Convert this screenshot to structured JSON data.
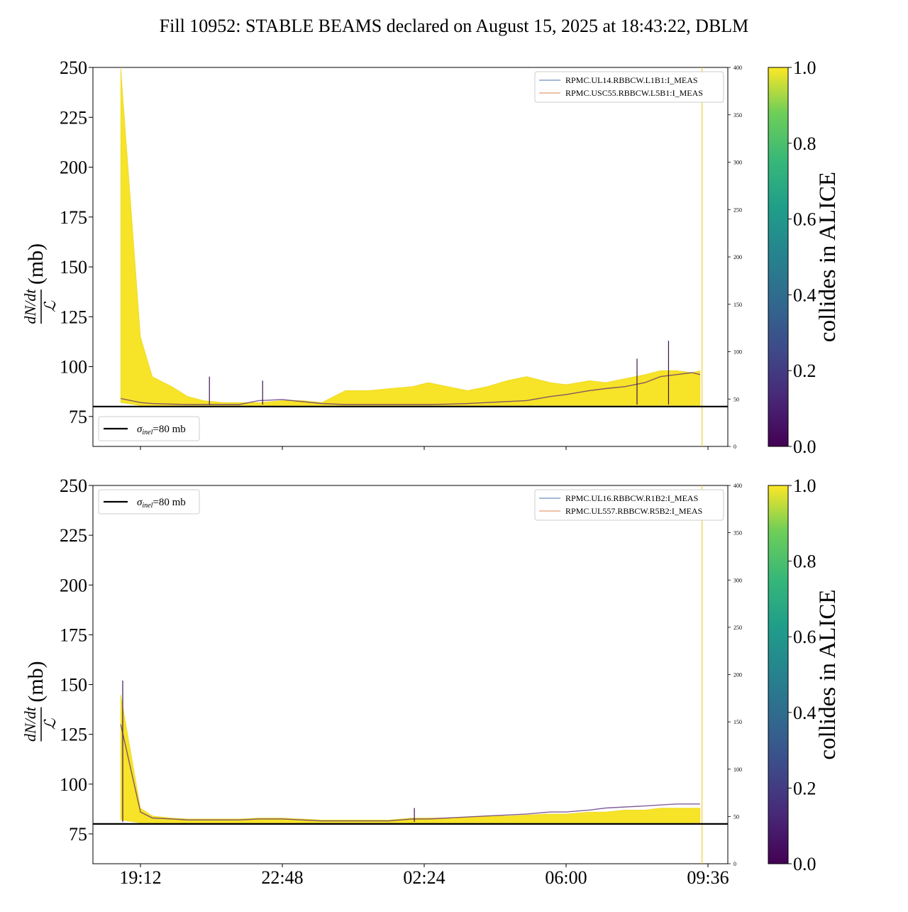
{
  "figure": {
    "title": "Fill 10952: STABLE BEAMS declared on August 15, 2025 at 18:43:22, DBLM"
  },
  "chart_data": [
    {
      "type": "line",
      "ylabel_frac_num": "dN/dt",
      "ylabel_frac_den": "ℒ",
      "ylabel_unit": "(mb)",
      "ylim": [
        60,
        250
      ],
      "yticks": [
        "75",
        "100",
        "125",
        "150",
        "175",
        "200",
        "225",
        "250"
      ],
      "y2lim": [
        0,
        400
      ],
      "y2ticks": [
        "0",
        "50",
        "100",
        "150",
        "200",
        "250",
        "300",
        "350",
        "400"
      ],
      "xticks": [],
      "x_hours": [
        18.7,
        19.2,
        19.5,
        20.0,
        20.4,
        20.8,
        21.3,
        21.7,
        22.2,
        22.8,
        23.3,
        23.8,
        0.4,
        1.0,
        1.5,
        2.1,
        2.5,
        3.0,
        3.5,
        4.0,
        4.5,
        5.0,
        5.6,
        6.0,
        6.6,
        7.0,
        7.5,
        8.0,
        8.4,
        8.8,
        9.2,
        9.4
      ],
      "series": [
        {
          "name": "yellow-envelope-upper",
          "values": [
            250,
            115,
            95,
            90,
            85,
            83,
            82,
            82,
            82,
            83,
            83,
            82,
            88,
            88,
            89,
            90,
            92,
            90,
            88,
            90,
            93,
            95,
            92,
            91,
            93,
            92,
            94,
            96,
            98,
            98,
            97,
            98
          ]
        },
        {
          "name": "yellow-envelope-lower",
          "values": [
            82,
            80.5,
            80.5,
            80.5,
            80.5,
            80.5,
            80.5,
            80.5,
            80.5,
            80.5,
            80.5,
            80.5,
            80.5,
            80.5,
            80.5,
            80.5,
            80.5,
            80.5,
            80.5,
            80.5,
            80.5,
            80.5,
            80.5,
            80.5,
            80.5,
            80.5,
            80.5,
            80.5,
            80.5,
            80.5,
            80.5,
            80.5
          ]
        },
        {
          "name": "purple-trace",
          "values": [
            84,
            82,
            81.5,
            81.2,
            81,
            81,
            81,
            81,
            83,
            83.5,
            82.5,
            81.5,
            81,
            81,
            81,
            81,
            81,
            81.2,
            81.5,
            82,
            82.5,
            83,
            85,
            86,
            88,
            89,
            90,
            92,
            95,
            96,
            97,
            96
          ]
        }
      ],
      "spikes": [
        {
          "x_hour": 20.95,
          "value": 95
        },
        {
          "x_hour": 22.3,
          "value": 93
        },
        {
          "x_hour": 8.6,
          "value": 113
        },
        {
          "x_hour": 7.8,
          "value": 104
        }
      ],
      "reference_line": {
        "value": 80,
        "label_sym": "σ",
        "label_sub": "inel",
        "label_rest": "=80 mb"
      },
      "vertical_marker_hour": 9.45,
      "legend": {
        "position": "top-right",
        "entries": [
          {
            "label": "RPMC.UL14.RBBCW.L1B1:I_MEAS",
            "color": "#4c72b0"
          },
          {
            "label": "RPMC.USC55.RBBCW.L5B1:I_MEAS",
            "color": "#dd8452"
          }
        ]
      },
      "ref_legend_position": "bottom-left",
      "colorbar": {
        "label": "collides in ALICE",
        "ticks": [
          "0.0",
          "0.2",
          "0.4",
          "0.6",
          "0.8",
          "1.0"
        ]
      }
    },
    {
      "type": "line",
      "ylabel_frac_num": "dN/dt",
      "ylabel_frac_den": "ℒ",
      "ylabel_unit": "(mb)",
      "ylim": [
        60,
        250
      ],
      "yticks": [
        "75",
        "100",
        "125",
        "150",
        "175",
        "200",
        "225",
        "250"
      ],
      "y2lim": [
        0,
        400
      ],
      "y2ticks": [
        "0",
        "50",
        "100",
        "150",
        "200",
        "250",
        "300",
        "350",
        "400"
      ],
      "xticks": [
        "19:12",
        "22:48",
        "02:24",
        "06:00",
        "09:36"
      ],
      "x_hours": [
        18.7,
        19.2,
        19.5,
        20.0,
        20.4,
        20.8,
        21.3,
        21.7,
        22.2,
        22.8,
        23.3,
        23.8,
        0.4,
        1.0,
        1.5,
        2.1,
        2.5,
        3.0,
        3.5,
        4.0,
        4.5,
        5.0,
        5.6,
        6.0,
        6.6,
        7.0,
        7.5,
        8.0,
        8.4,
        8.8,
        9.2,
        9.4
      ],
      "series": [
        {
          "name": "yellow-envelope-upper",
          "values": [
            145,
            88,
            84,
            83,
            82.5,
            82.5,
            82.5,
            82.5,
            83,
            83,
            82.5,
            82,
            82,
            82,
            82,
            83,
            83,
            83,
            83.5,
            84,
            84,
            84.5,
            85,
            85,
            86,
            86,
            87,
            87,
            88,
            88,
            88,
            88
          ]
        },
        {
          "name": "yellow-envelope-lower",
          "values": [
            82,
            80.5,
            80.5,
            80.5,
            80.5,
            80.5,
            80.5,
            80.5,
            80.5,
            80.5,
            80.5,
            80.5,
            80.5,
            80.5,
            80.5,
            80.5,
            80.5,
            80.5,
            80.5,
            80.5,
            80.5,
            80.5,
            80.5,
            80.5,
            80.5,
            80.5,
            80.5,
            80.5,
            80.5,
            80.5,
            80.5,
            80.5
          ]
        },
        {
          "name": "purple-trace",
          "values": [
            130,
            86,
            83,
            82.5,
            82,
            82,
            82,
            82,
            82.5,
            82.5,
            82,
            81.5,
            81.5,
            81.5,
            81.5,
            82.5,
            82.5,
            83,
            83.5,
            84,
            84.5,
            85,
            86,
            86,
            87,
            88,
            88.5,
            89,
            89.5,
            90,
            90,
            90
          ]
        }
      ],
      "spikes": [
        {
          "x_hour": 18.75,
          "value": 152
        },
        {
          "x_hour": 2.15,
          "value": 88
        }
      ],
      "reference_line": {
        "value": 80,
        "label_sym": "σ",
        "label_sub": "inel",
        "label_rest": "=80 mb"
      },
      "vertical_marker_hour": 9.45,
      "legend": {
        "position": "top-right",
        "entries": [
          {
            "label": "RPMC.UL16.RBBCW.R1B2:I_MEAS",
            "color": "#4c72b0"
          },
          {
            "label": "RPMC.UL557.RBBCW.R5B2:I_MEAS",
            "color": "#dd8452"
          }
        ]
      },
      "ref_legend_position": "top-left",
      "colorbar": {
        "label": "collides in ALICE",
        "ticks": [
          "0.0",
          "0.2",
          "0.4",
          "0.6",
          "0.8",
          "1.0"
        ]
      }
    }
  ]
}
